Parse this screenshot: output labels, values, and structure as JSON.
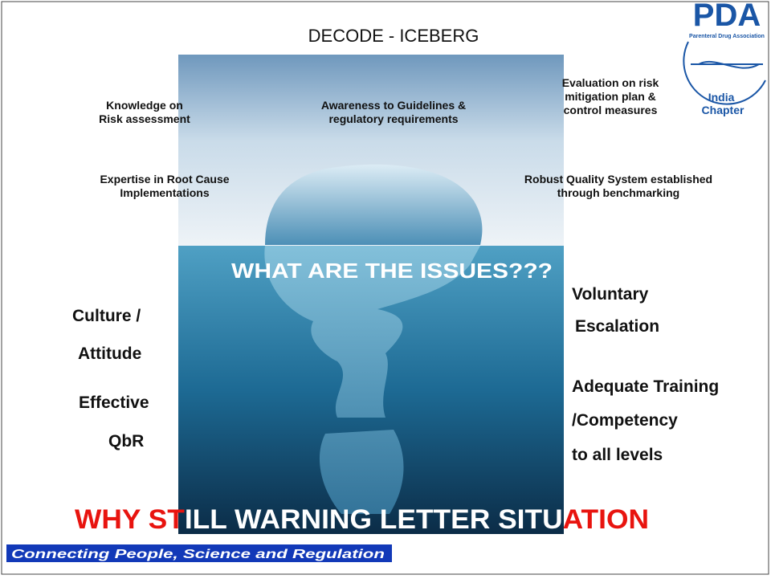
{
  "title": "DECODE  - ICEBERG",
  "logo": {
    "mark": "PDA",
    "org": "Parenteral Drug Association",
    "chapter": [
      "India",
      "Chapter"
    ]
  },
  "above_water": [
    {
      "lines": [
        "Knowledge on",
        "Risk assessment"
      ]
    },
    {
      "lines": [
        "Awareness to Guidelines &",
        "regulatory requirements"
      ]
    },
    {
      "lines": [
        "Evaluation on risk",
        "mitigation plan &",
        "control measures"
      ]
    },
    {
      "lines": [
        "Expertise in Root Cause",
        "Implementations"
      ]
    },
    {
      "lines": [
        "Robust Quality System established",
        "through  benchmarking"
      ]
    }
  ],
  "question": "WHAT  ARE THE ISSUES???",
  "below_left": [
    "Culture /",
    "Attitude",
    "Effective",
    "QbR"
  ],
  "below_right": [
    "Voluntary",
    " Escalation",
    "Adequate Training",
    "/Competency",
    "to all levels"
  ],
  "headline": [
    "WHY ST",
    "ILL WARNING LETTER SITU",
    "ATION"
  ],
  "tagline": "Connecting People, Science and Regulation"
}
